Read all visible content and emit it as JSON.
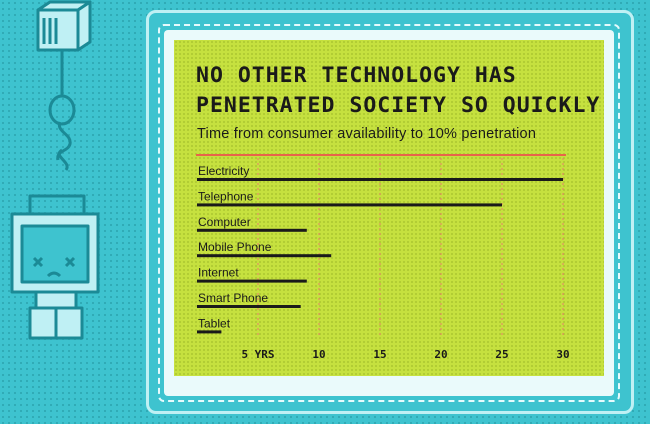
{
  "chart_data": {
    "type": "bar",
    "orientation": "horizontal",
    "title_lines": [
      "NO OTHER TECHNOLOGY HAS",
      "PENETRATED SOCIETY SO QUICKLY"
    ],
    "subtitle": "Time from consumer availability to 10% penetration",
    "categories": [
      "Electricity",
      "Telephone",
      "Computer",
      "Mobile Phone",
      "Internet",
      "Smart Phone",
      "Tablet"
    ],
    "values": [
      30,
      25,
      9,
      11,
      9,
      8.5,
      2
    ],
    "x_tick_values": [
      5,
      10,
      15,
      20,
      25,
      30
    ],
    "x_tick_labels": [
      "5 YRS",
      "10",
      "15",
      "20",
      "25",
      "30"
    ],
    "xlim": [
      0,
      30
    ],
    "grid": true,
    "colors": {
      "bar": "#1a1a1a",
      "accent_line": "#e8644a",
      "grid": "#e8806a",
      "screen": "#c6e13f",
      "background": "#3ec3cf"
    }
  }
}
